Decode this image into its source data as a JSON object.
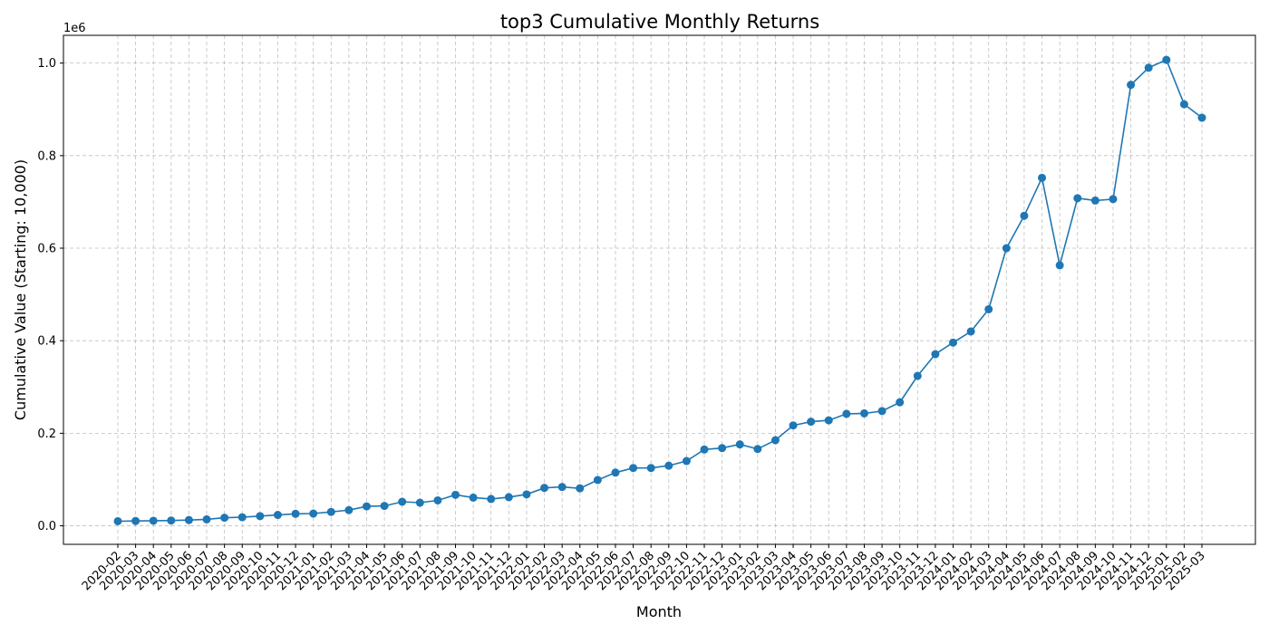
{
  "chart_data": {
    "type": "line",
    "title": "top3 Cumulative Monthly Returns",
    "xlabel": "Month",
    "ylabel": "Cumulative Value (Starting: 10,000)",
    "y_offset_label": "1e6",
    "y_multiplier": 1000000,
    "ylim": [
      -40000,
      1060000
    ],
    "yticks": [
      0,
      200000,
      400000,
      600000,
      800000,
      1000000
    ],
    "ytick_labels": [
      "0.0",
      "0.2",
      "0.4",
      "0.6",
      "0.8",
      "1.0"
    ],
    "grid": true,
    "line_color": "#1f77b4",
    "marker": "circle",
    "categories": [
      "2020-02",
      "2020-03",
      "2020-04",
      "2020-05",
      "2020-06",
      "2020-07",
      "2020-08",
      "2020-09",
      "2020-10",
      "2020-11",
      "2020-12",
      "2021-01",
      "2021-02",
      "2021-03",
      "2021-04",
      "2021-05",
      "2021-06",
      "2021-07",
      "2021-08",
      "2021-09",
      "2021-10",
      "2021-11",
      "2021-12",
      "2022-01",
      "2022-02",
      "2022-03",
      "2022-04",
      "2022-05",
      "2022-06",
      "2022-07",
      "2022-08",
      "2022-09",
      "2022-10",
      "2022-11",
      "2022-12",
      "2023-01",
      "2023-02",
      "2023-03",
      "2023-04",
      "2023-05",
      "2023-06",
      "2023-07",
      "2023-08",
      "2023-09",
      "2023-10",
      "2023-11",
      "2023-12",
      "2024-01",
      "2024-02",
      "2024-03",
      "2024-04",
      "2024-05",
      "2024-06",
      "2024-07",
      "2024-08",
      "2024-09",
      "2024-10",
      "2024-11",
      "2024-12",
      "2025-01",
      "2025-02",
      "2025-03"
    ],
    "series": [
      {
        "values": [
          10000,
          10500,
          11000,
          11500,
          12500,
          14000,
          17500,
          18500,
          21000,
          23500,
          26000,
          26500,
          30000,
          34000,
          42000,
          43000,
          52000,
          50000,
          55000,
          67000,
          61000,
          58000,
          62000,
          68000,
          82000,
          84000,
          81000,
          99000,
          115000,
          125000,
          125000,
          130000,
          140000,
          165000,
          168000,
          176000,
          166000,
          185000,
          217000,
          225000,
          228000,
          242000,
          243000,
          248000,
          267000,
          324000,
          371000,
          396000,
          420000,
          468000,
          600000,
          670000,
          752000,
          563000,
          708000,
          703000,
          706000,
          953000,
          990000,
          1007000,
          911000,
          882000
        ]
      }
    ]
  }
}
